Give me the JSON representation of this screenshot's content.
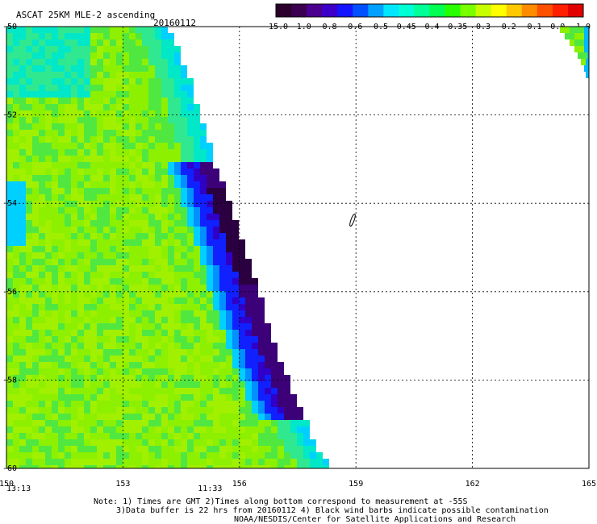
{
  "header": {
    "title": "ASCAT 25KM MLE-2 ascending",
    "date": "20160112"
  },
  "colorbar": {
    "colors": [
      "#2b002b",
      "#3c0050",
      "#4b0090",
      "#3c00c8",
      "#1414ff",
      "#0050ff",
      "#00a0ff",
      "#00e6ff",
      "#00ffd2",
      "#00ff96",
      "#00ff50",
      "#28ff00",
      "#78ff00",
      "#c8ff00",
      "#ffff00",
      "#ffc800",
      "#ff8c00",
      "#ff5000",
      "#ff1e00",
      "#e10000"
    ],
    "labels": [
      "-15.0",
      "-1.0",
      "-0.8",
      "-0.6",
      "-0.5",
      "-0.45",
      "-0.4",
      "-0.35",
      "-0.3",
      "-0.2",
      "-0.1",
      "0.0",
      "1.0"
    ]
  },
  "map": {
    "lon_range": [
      150,
      165
    ],
    "lat_range": [
      -60,
      -50
    ],
    "x_ticks": [
      "150",
      "153",
      "156",
      "159",
      "162",
      "165"
    ],
    "y_ticks": [
      "-50",
      "-52",
      "-54",
      "-56",
      "-58",
      "-60"
    ],
    "time_labels": [
      {
        "text": "13:13",
        "lon": 150
      },
      {
        "text": "11:33",
        "lon": 155.2
      }
    ],
    "time_color": "#cc0000",
    "grid": "dashed",
    "swath": {
      "description_colors": [
        "#88f000",
        "#00d890",
        "#00b8ff",
        "#1010ff",
        "#3a0070"
      ]
    }
  },
  "footer": {
    "note1": "Note: 1) Times are GMT 2)Times along bottom correspond to measurement at -55S",
    "note2": "3)Data buffer is 22 hrs from 20160112 4) Black wind barbs indicate possible contamination",
    "note3": "NOAA/NESDIS/Center for Satellite Applications and Research"
  }
}
